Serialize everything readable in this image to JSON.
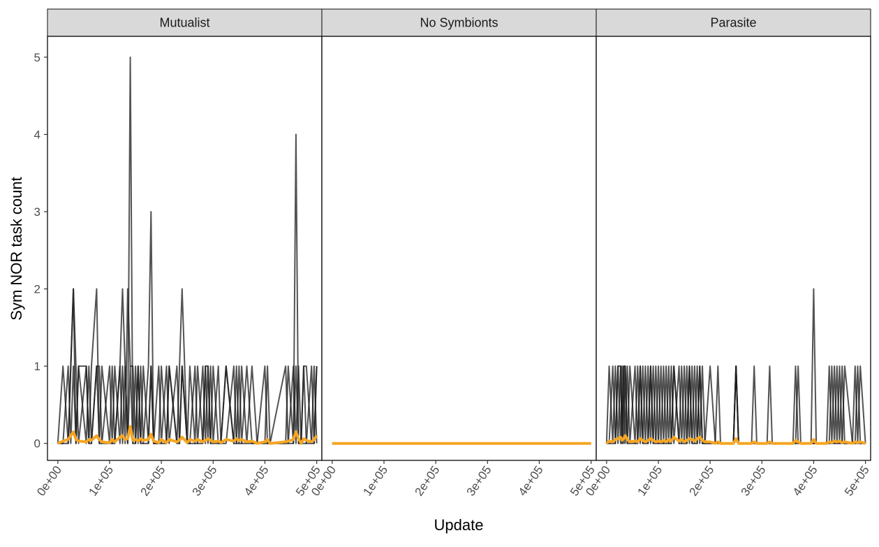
{
  "chart_data": {
    "type": "line",
    "xlabel": "Update",
    "ylabel": "Sym NOR task count",
    "xlim": [
      -20000,
      510000
    ],
    "ylim": [
      -0.22,
      5.27
    ],
    "x_ticks": [
      0,
      100000,
      200000,
      300000,
      400000,
      500000
    ],
    "x_tick_labels": [
      "0e+00",
      "1e+05",
      "2e+05",
      "3e+05",
      "4e+05",
      "5e+05"
    ],
    "y_ticks": [
      0,
      1,
      2,
      3,
      4,
      5
    ],
    "y_tick_labels": [
      "0",
      "1",
      "2",
      "3",
      "4",
      "5"
    ],
    "grid": false,
    "colors": {
      "replicate_lines": "#1a1a1a",
      "mean_line": "#f5a623",
      "strip_fill": "#d9d9d9",
      "panel_border": "#1a1a1a"
    },
    "panels": [
      {
        "name": "Mutualist",
        "x": [
          0,
          10000,
          20000,
          25000,
          30000,
          35000,
          40000,
          55000,
          60000,
          65000,
          75000,
          80000,
          85000,
          100000,
          105000,
          110000,
          120000,
          125000,
          130000,
          135000,
          140000,
          145000,
          150000,
          155000,
          160000,
          165000,
          175000,
          180000,
          185000,
          195000,
          200000,
          210000,
          215000,
          230000,
          235000,
          240000,
          250000,
          255000,
          265000,
          270000,
          280000,
          285000,
          290000,
          295000,
          300000,
          310000,
          315000,
          325000,
          340000,
          345000,
          350000,
          355000,
          365000,
          375000,
          385000,
          400000,
          405000,
          410000,
          440000,
          445000,
          455000,
          460000,
          465000,
          470000,
          475000,
          480000,
          490000,
          495000,
          500000
        ],
        "replicates": [
          {
            "values": [
              0,
              1,
              0,
              1,
              2,
              1,
              0,
              1,
              0,
              1,
              2,
              0,
              1,
              0,
              1,
              0,
              1,
              2,
              1,
              0,
              5,
              0,
              1,
              0,
              1,
              0,
              1,
              3,
              0,
              0,
              1,
              0,
              1,
              0,
              1,
              2,
              0,
              1,
              0,
              1,
              0,
              1,
              0,
              1,
              0,
              1,
              0,
              1,
              0,
              1,
              0,
              1,
              0,
              1,
              0,
              0,
              1,
              0,
              0,
              1,
              0,
              4,
              0,
              0,
              1,
              0,
              0,
              1,
              0
            ]
          },
          {
            "values": [
              0,
              0,
              1,
              0,
              1,
              0,
              1,
              0,
              1,
              0,
              1,
              0,
              0,
              1,
              0,
              1,
              0,
              1,
              0,
              2,
              1,
              1,
              0,
              1,
              0,
              1,
              0,
              1,
              0,
              1,
              0,
              1,
              0,
              1,
              0,
              1,
              0,
              0,
              1,
              0,
              1,
              0,
              1,
              0,
              1,
              0,
              0,
              1,
              0,
              0,
              1,
              0,
              1,
              0,
              0,
              1,
              0,
              0,
              0,
              0,
              1,
              0,
              1,
              0,
              0,
              0,
              1,
              0,
              1
            ]
          },
          {
            "values": [
              0,
              0,
              0,
              1,
              2,
              0,
              1,
              1,
              0,
              0,
              1,
              1,
              0,
              0,
              0,
              0,
              1,
              0,
              1,
              0,
              1,
              0,
              0,
              1,
              0,
              0,
              0,
              1,
              0,
              0,
              0,
              0,
              1,
              0,
              0,
              1,
              0,
              0,
              0,
              0,
              0,
              1,
              1,
              0,
              0,
              0,
              0,
              0,
              1,
              0,
              0,
              0,
              0,
              0,
              0,
              0,
              0,
              0,
              1,
              0,
              0,
              1,
              0,
              0,
              1,
              1,
              0,
              0,
              1
            ]
          }
        ],
        "mean": [
          0,
          0.03,
          0.05,
          0.1,
          0.15,
          0.05,
          0.03,
          0.02,
          0.05,
          0.04,
          0.1,
          0.05,
          0.02,
          0.01,
          0.05,
          0.02,
          0.08,
          0.1,
          0.05,
          0.06,
          0.22,
          0.04,
          0.05,
          0.03,
          0.06,
          0.04,
          0.05,
          0.12,
          0.03,
          0.01,
          0.05,
          0.01,
          0.05,
          0.02,
          0.04,
          0.08,
          0.01,
          0.05,
          0.03,
          0.05,
          0.02,
          0.04,
          0.06,
          0.04,
          0.02,
          0.03,
          0.01,
          0.05,
          0.03,
          0.06,
          0.04,
          0.05,
          0.02,
          0.03,
          0.0,
          0.02,
          0.05,
          0.0,
          0.02,
          0.03,
          0.05,
          0.15,
          0.06,
          0.0,
          0.06,
          0.04,
          0.02,
          0.05,
          0.1
        ]
      },
      {
        "name": "No Symbionts",
        "x": [
          0,
          500000
        ],
        "replicates": [
          {
            "values": [
              0,
              0
            ]
          }
        ],
        "mean": [
          0,
          0
        ]
      },
      {
        "name": "Parasite",
        "x": [
          0,
          5000,
          12000,
          17000,
          22000,
          27000,
          30000,
          33000,
          36000,
          40000,
          45000,
          55000,
          60000,
          65000,
          70000,
          75000,
          80000,
          85000,
          90000,
          95000,
          100000,
          105000,
          110000,
          115000,
          120000,
          125000,
          130000,
          140000,
          145000,
          150000,
          155000,
          160000,
          165000,
          170000,
          175000,
          180000,
          185000,
          190000,
          200000,
          210000,
          215000,
          220000,
          245000,
          250000,
          255000,
          280000,
          285000,
          290000,
          310000,
          315000,
          320000,
          360000,
          365000,
          370000,
          375000,
          395000,
          400000,
          405000,
          410000,
          425000,
          430000,
          435000,
          440000,
          445000,
          450000,
          455000,
          460000,
          475000,
          480000,
          485000,
          490000,
          500000
        ],
        "replicates": [
          {
            "values": [
              0,
              1,
              0,
              1,
              0,
              1,
              0,
              1,
              0,
              1,
              0,
              1,
              0,
              1,
              0,
              1,
              0,
              1,
              0,
              0,
              1,
              0,
              1,
              0,
              1,
              0,
              1,
              0,
              1,
              0,
              1,
              0,
              1,
              0,
              1,
              0,
              1,
              0,
              0,
              0,
              1,
              0,
              0,
              1,
              0,
              0,
              1,
              0,
              0,
              1,
              0,
              0,
              1,
              0,
              0,
              0,
              2,
              0,
              0,
              0,
              1,
              0,
              1,
              0,
              1,
              0,
              0,
              0,
              1,
              0,
              1,
              0
            ]
          },
          {
            "values": [
              0,
              0,
              1,
              0,
              1,
              0,
              1,
              0,
              1,
              0,
              1,
              0,
              1,
              0,
              1,
              0,
              1,
              0,
              1,
              0,
              0,
              1,
              0,
              1,
              0,
              1,
              0,
              1,
              0,
              1,
              0,
              1,
              0,
              1,
              0,
              1,
              0,
              0,
              1,
              0,
              0,
              0,
              0,
              1,
              0,
              0,
              0,
              0,
              0,
              0,
              0,
              0,
              0,
              1,
              0,
              0,
              0,
              0,
              0,
              0,
              0,
              1,
              0,
              1,
              0,
              1,
              0,
              0,
              0,
              1,
              0,
              0
            ]
          },
          {
            "values": [
              0,
              0,
              0,
              0,
              1,
              1,
              0,
              1,
              1,
              0,
              0,
              0,
              0,
              1,
              0,
              0,
              0,
              1,
              0,
              1,
              0,
              0,
              0,
              0,
              0,
              0,
              1,
              0,
              0,
              0,
              0,
              1,
              0,
              0,
              0,
              1,
              0,
              0,
              0,
              0,
              0,
              0,
              0,
              1,
              0,
              0,
              0,
              0,
              0,
              0,
              0,
              0,
              0,
              0,
              0,
              0,
              0,
              0,
              0,
              0,
              0,
              0,
              0,
              0,
              0,
              0,
              1,
              0,
              0,
              0,
              0,
              0
            ]
          }
        ],
        "mean": [
          0,
          0.03,
          0.02,
          0.05,
          0.06,
          0.08,
          0.04,
          0.06,
          0.1,
          0.05,
          0.02,
          0.03,
          0.02,
          0.06,
          0.04,
          0.02,
          0.04,
          0.06,
          0.04,
          0.02,
          0.03,
          0.02,
          0.04,
          0.02,
          0.05,
          0.03,
          0.08,
          0.03,
          0.05,
          0.02,
          0.04,
          0.06,
          0.05,
          0.03,
          0.06,
          0.08,
          0.04,
          0.02,
          0.02,
          0.0,
          0.02,
          0.0,
          0.0,
          0.06,
          0.0,
          0.0,
          0.02,
          0.0,
          0.0,
          0.02,
          0.0,
          0.0,
          0.04,
          0.02,
          0.0,
          0.0,
          0.05,
          0.0,
          0.0,
          0.0,
          0.02,
          0.01,
          0.03,
          0.02,
          0.03,
          0.01,
          0.02,
          0.0,
          0.02,
          0.01,
          0.02,
          0.0
        ]
      }
    ]
  }
}
